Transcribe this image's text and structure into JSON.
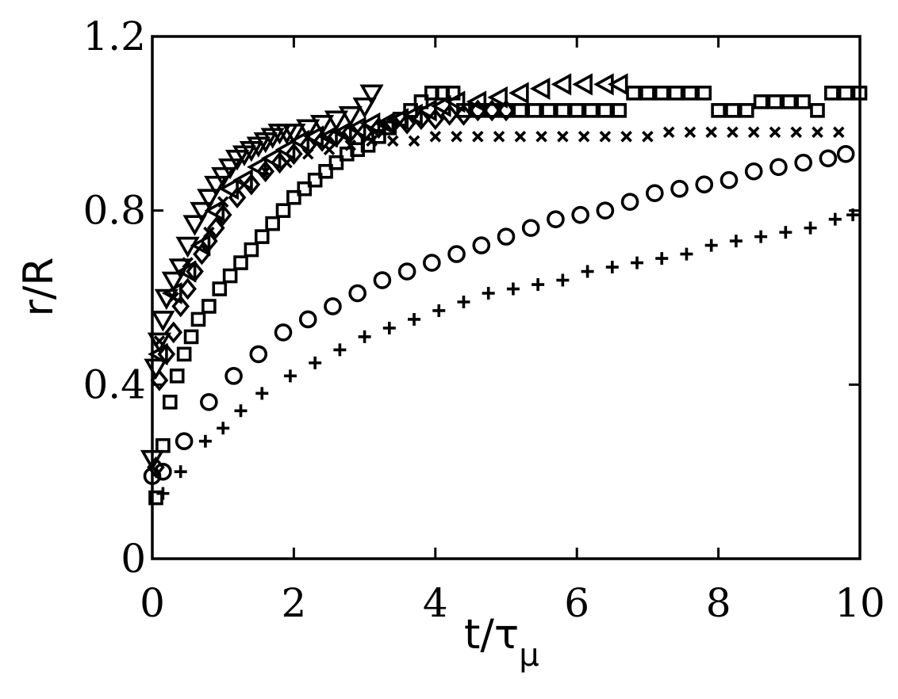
{
  "chart_data": {
    "type": "scatter",
    "title": "",
    "xlabel": {
      "main": "t/τ",
      "subscript": "μ"
    },
    "ylabel": "r/R",
    "xlim": [
      0,
      10
    ],
    "ylim": [
      0,
      1.2
    ],
    "xticks": [
      0,
      2,
      4,
      6,
      8,
      10
    ],
    "yticks": [
      0,
      0.4,
      0.8,
      1.2
    ],
    "xtick_labels": [
      "0",
      "2",
      "4",
      "6",
      "8",
      "10"
    ],
    "ytick_labels": [
      "0",
      "0.4",
      "0.8",
      "1.2"
    ],
    "grid": false,
    "legend": "none",
    "series": [
      {
        "marker": "triangle-down",
        "x": [
          0.0,
          0.05,
          0.1,
          0.15,
          0.2,
          0.3,
          0.4,
          0.5,
          0.6,
          0.7,
          0.8,
          0.9,
          1.0,
          1.1,
          1.2,
          1.3,
          1.4,
          1.5,
          1.6,
          1.7,
          1.8,
          1.9,
          2.0,
          2.2,
          2.4,
          2.6,
          2.8,
          3.0,
          3.1
        ],
        "y": [
          0.23,
          0.44,
          0.5,
          0.55,
          0.6,
          0.64,
          0.67,
          0.72,
          0.77,
          0.8,
          0.83,
          0.86,
          0.88,
          0.9,
          0.92,
          0.93,
          0.94,
          0.95,
          0.96,
          0.97,
          0.98,
          0.98,
          0.98,
          0.99,
          1.0,
          1.01,
          1.02,
          1.04,
          1.07
        ]
      },
      {
        "marker": "triangle-left",
        "x": [
          0.1,
          0.3,
          0.5,
          0.7,
          0.9,
          1.1,
          1.3,
          1.5,
          1.7,
          1.9,
          2.1,
          2.3,
          2.5,
          2.7,
          2.9,
          3.1,
          3.3,
          3.5,
          3.7,
          3.9,
          4.1,
          4.3,
          4.6,
          4.9,
          5.2,
          5.5,
          5.8,
          6.1,
          6.4,
          6.6
        ],
        "y": [
          0.47,
          0.61,
          0.66,
          0.72,
          0.8,
          0.85,
          0.87,
          0.9,
          0.92,
          0.94,
          0.96,
          0.97,
          0.97,
          0.98,
          0.99,
          1.0,
          1.0,
          1.01,
          1.02,
          1.03,
          1.04,
          1.05,
          1.05,
          1.06,
          1.07,
          1.08,
          1.09,
          1.09,
          1.09,
          1.09
        ]
      },
      {
        "marker": "diamond",
        "x": [
          0.05,
          0.1,
          0.2,
          0.3,
          0.4,
          0.5,
          0.6,
          0.7,
          0.8,
          0.9,
          1.0,
          1.2,
          1.4,
          1.6,
          1.8,
          2.0,
          2.2,
          2.4,
          2.6,
          2.8,
          3.0,
          3.2,
          3.4,
          3.6,
          3.8,
          4.0,
          4.2,
          4.4,
          4.6,
          4.8,
          5.0
        ],
        "y": [
          0.21,
          0.41,
          0.47,
          0.52,
          0.58,
          0.62,
          0.66,
          0.7,
          0.73,
          0.76,
          0.79,
          0.83,
          0.86,
          0.89,
          0.91,
          0.93,
          0.95,
          0.96,
          0.97,
          0.98,
          0.98,
          0.99,
          1.0,
          1.0,
          1.01,
          1.01,
          1.02,
          1.02,
          1.03,
          1.03,
          1.03
        ]
      },
      {
        "marker": "cross",
        "x": [
          0.1,
          0.3,
          0.5,
          0.8,
          1.0,
          1.3,
          1.6,
          1.9,
          2.2,
          2.5,
          2.8,
          3.1,
          3.4,
          3.7,
          4.0,
          4.3,
          4.6,
          4.9,
          5.2,
          5.5,
          5.8,
          6.1,
          6.4,
          6.7,
          7.0,
          7.3,
          7.6,
          7.9,
          8.2,
          8.5,
          8.8,
          9.1,
          9.4,
          9.7
        ],
        "y": [
          0.5,
          0.6,
          0.68,
          0.75,
          0.82,
          0.86,
          0.89,
          0.91,
          0.93,
          0.94,
          0.95,
          0.96,
          0.96,
          0.96,
          0.97,
          0.97,
          0.97,
          0.97,
          0.97,
          0.97,
          0.97,
          0.97,
          0.97,
          0.97,
          0.97,
          0.98,
          0.98,
          0.98,
          0.98,
          0.98,
          0.98,
          0.98,
          0.98,
          0.98
        ]
      },
      {
        "marker": "square",
        "x": [
          0.05,
          0.15,
          0.25,
          0.35,
          0.45,
          0.55,
          0.65,
          0.8,
          0.95,
          1.1,
          1.25,
          1.4,
          1.55,
          1.7,
          1.85,
          2.0,
          2.15,
          2.3,
          2.45,
          2.6,
          2.75,
          2.9,
          3.05,
          3.2,
          3.35,
          3.5,
          3.65,
          3.8,
          3.95,
          4.1,
          4.25,
          4.4,
          4.6,
          4.8,
          5.0,
          5.2,
          5.4,
          5.6,
          5.8,
          6.0,
          6.2,
          6.4,
          6.6,
          6.8,
          7.0,
          7.2,
          7.4,
          7.6,
          7.8,
          8.0,
          8.2,
          8.4,
          8.6,
          8.8,
          9.0,
          9.2,
          9.4,
          9.6,
          9.8,
          10.0
        ],
        "y": [
          0.14,
          0.26,
          0.36,
          0.42,
          0.47,
          0.51,
          0.55,
          0.58,
          0.62,
          0.65,
          0.68,
          0.71,
          0.74,
          0.77,
          0.8,
          0.83,
          0.85,
          0.87,
          0.89,
          0.91,
          0.93,
          0.94,
          0.95,
          0.97,
          0.99,
          1.01,
          1.03,
          1.05,
          1.07,
          1.07,
          1.07,
          1.03,
          1.03,
          1.03,
          1.03,
          1.03,
          1.03,
          1.03,
          1.03,
          1.03,
          1.03,
          1.03,
          1.03,
          1.07,
          1.07,
          1.07,
          1.07,
          1.07,
          1.07,
          1.03,
          1.03,
          1.03,
          1.05,
          1.05,
          1.05,
          1.05,
          1.03,
          1.07,
          1.07,
          1.07
        ]
      },
      {
        "marker": "circle",
        "x": [
          0.0,
          0.15,
          0.45,
          0.8,
          1.15,
          1.5,
          1.85,
          2.2,
          2.55,
          2.9,
          3.25,
          3.6,
          3.95,
          4.3,
          4.65,
          5.0,
          5.35,
          5.7,
          6.05,
          6.4,
          6.75,
          7.1,
          7.45,
          7.8,
          8.15,
          8.5,
          8.85,
          9.2,
          9.55,
          9.8
        ],
        "y": [
          0.19,
          0.2,
          0.27,
          0.36,
          0.42,
          0.47,
          0.52,
          0.55,
          0.58,
          0.61,
          0.64,
          0.66,
          0.68,
          0.7,
          0.72,
          0.74,
          0.76,
          0.78,
          0.79,
          0.8,
          0.82,
          0.84,
          0.85,
          0.86,
          0.87,
          0.89,
          0.9,
          0.91,
          0.92,
          0.93
        ]
      },
      {
        "marker": "plus",
        "x": [
          0.15,
          0.4,
          0.75,
          1.0,
          1.25,
          1.55,
          1.95,
          2.3,
          2.65,
          3.0,
          3.35,
          3.7,
          4.05,
          4.4,
          4.75,
          5.1,
          5.45,
          5.8,
          6.15,
          6.5,
          6.85,
          7.2,
          7.55,
          7.9,
          8.25,
          8.6,
          8.95,
          9.3,
          9.65,
          9.9
        ],
        "y": [
          0.15,
          0.2,
          0.27,
          0.3,
          0.34,
          0.38,
          0.42,
          0.45,
          0.48,
          0.51,
          0.53,
          0.55,
          0.57,
          0.59,
          0.61,
          0.62,
          0.63,
          0.64,
          0.66,
          0.67,
          0.68,
          0.69,
          0.7,
          0.72,
          0.73,
          0.74,
          0.75,
          0.76,
          0.78,
          0.79
        ]
      }
    ]
  }
}
